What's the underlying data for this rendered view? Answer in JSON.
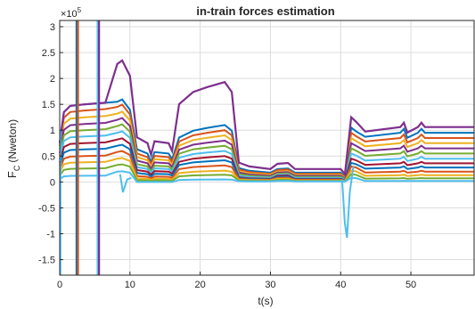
{
  "chart_data": {
    "type": "line",
    "title": "in-train forces estimation",
    "xlabel": "t(s)",
    "ylabel_main": "F",
    "ylabel_sub": "C",
    "ylabel_unit": "(Nweton)",
    "exponent_base": "×10",
    "exponent_power": "5",
    "xlim": [
      0,
      59
    ],
    "ylim": [
      -1.8,
      3.12
    ],
    "x_ticks": [
      0,
      10,
      20,
      30,
      40,
      50
    ],
    "x_tick_labels": [
      "0",
      "10",
      "20",
      "30",
      "40",
      "50"
    ],
    "y_ticks": [
      -1.5,
      -1,
      -0.5,
      0,
      0.5,
      1,
      1.5,
      2,
      2.5,
      3
    ],
    "y_tick_labels": [
      "-1.5",
      "-1",
      "-0.5",
      "0",
      "0.5",
      "1",
      "1.5",
      "2",
      "2.5",
      "3"
    ],
    "y_scale_note": "values in units of 1e5 N",
    "grid": true,
    "series": [
      {
        "color": "#0072BD",
        "levels": {
          "plateau1": 1.5,
          "peak_a": 1.55,
          "trough_a": 0.55,
          "peak_b": 1.1,
          "valley": 0.18,
          "step": 0.25,
          "peak_c": 1.05,
          "end": 0.95
        }
      },
      {
        "color": "#D95319",
        "levels": {
          "plateau1": 1.38,
          "peak_a": 1.45,
          "trough_a": 0.48,
          "peak_b": 1.0,
          "valley": 0.16,
          "step": 0.23,
          "peak_c": 0.95,
          "end": 0.85
        }
      },
      {
        "color": "#EDB120",
        "levels": {
          "plateau1": 1.25,
          "peak_a": 1.32,
          "trough_a": 0.42,
          "peak_b": 0.9,
          "valley": 0.14,
          "step": 0.2,
          "peak_c": 0.85,
          "end": 0.75
        }
      },
      {
        "color": "#7E2F8E",
        "levels": {
          "plateau1": 1.12,
          "peak_a": 1.2,
          "trough_a": 0.36,
          "peak_b": 0.8,
          "valley": 0.12,
          "step": 0.18,
          "peak_c": 0.75,
          "end": 0.65
        }
      },
      {
        "color": "#77AC30",
        "levels": {
          "plateau1": 1.0,
          "peak_a": 1.08,
          "trough_a": 0.3,
          "peak_b": 0.7,
          "valley": 0.1,
          "step": 0.16,
          "peak_c": 0.65,
          "end": 0.55
        }
      },
      {
        "color": "#4DBEEE",
        "levels": {
          "plateau1": 0.88,
          "peak_a": 0.95,
          "trough_a": 0.25,
          "peak_b": 0.6,
          "valley": 0.08,
          "step": 0.14,
          "peak_c": 0.55,
          "end": 0.45
        }
      },
      {
        "color": "#A2142F",
        "levels": {
          "plateau1": 0.75,
          "peak_a": 0.82,
          "trough_a": 0.2,
          "peak_b": 0.5,
          "valley": 0.06,
          "step": 0.12,
          "peak_c": 0.45,
          "end": 0.36
        }
      },
      {
        "color": "#0072BD",
        "levels": {
          "plateau1": 0.63,
          "peak_a": 0.7,
          "trough_a": 0.15,
          "peak_b": 0.42,
          "valley": 0.05,
          "step": 0.1,
          "peak_c": 0.37,
          "end": 0.28
        }
      },
      {
        "color": "#D95319",
        "levels": {
          "plateau1": 0.5,
          "peak_a": 0.58,
          "trough_a": 0.1,
          "peak_b": 0.32,
          "valley": 0.04,
          "step": 0.08,
          "peak_c": 0.3,
          "end": 0.2
        }
      },
      {
        "color": "#EDB120",
        "levels": {
          "plateau1": 0.38,
          "peak_a": 0.45,
          "trough_a": 0.06,
          "peak_b": 0.22,
          "valley": 0.03,
          "step": 0.06,
          "peak_c": 0.22,
          "end": 0.13
        }
      },
      {
        "color": "#77AC30",
        "levels": {
          "plateau1": 0.26,
          "peak_a": 0.33,
          "trough_a": 0.03,
          "peak_b": 0.14,
          "valley": 0.02,
          "step": 0.04,
          "peak_c": 0.15,
          "end": 0.07
        }
      },
      {
        "color": "#4DBEEE",
        "levels": {
          "plateau1": 0.12,
          "peak_a": 0.2,
          "trough_a": 0.0,
          "peak_b": 0.05,
          "valley": 0.01,
          "step": 0.02,
          "peak_c": 0.08,
          "end": 0.02
        }
      }
    ],
    "top_series": {
      "color": "#7E2F8E",
      "levels": {
        "plateau1": 1.5,
        "peak_a": 2.28,
        "trough_a": 0.75,
        "peak_b": 1.93,
        "valley": 0.25,
        "step": 0.35,
        "peak_c": 1.25,
        "end": 1.06
      }
    },
    "spikes": [
      {
        "x": 2.4,
        "color": "#0072BD"
      },
      {
        "x": 2.6,
        "color": "#D95319"
      },
      {
        "x": 5.4,
        "color": "#4DBEEE"
      },
      {
        "x": 5.6,
        "color": "#7E2F8E"
      }
    ]
  }
}
